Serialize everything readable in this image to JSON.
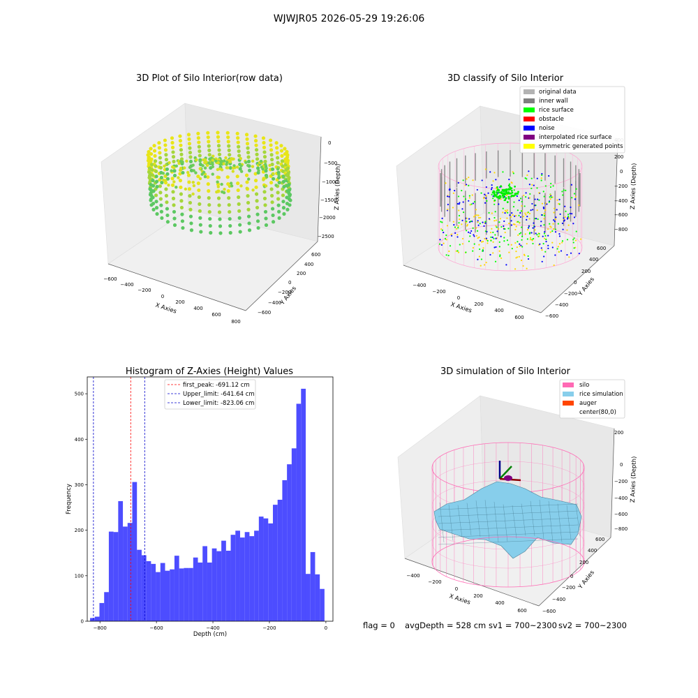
{
  "figure": {
    "suptitle": "WJWJR05 2026-05-29 19:26:06",
    "status": {
      "flag": "flag = 0",
      "avg_depth": "avgDepth = 528 cm",
      "sv1": "sv1 = 700~2300",
      "sv2": "sv2 = 700~2300"
    }
  },
  "colors": {
    "bar": "#4d4dff",
    "first_peak": "#ff0000",
    "limits": "#0000cc",
    "silo": "#ff69b4",
    "rice_simulation": "#87ceeb",
    "auger": "#ff4500"
  },
  "chart_data": [
    {
      "id": "raw",
      "type": "scatter",
      "title": "3D Plot of Silo Interior(row data)",
      "xlabel": "X Axies",
      "ylabel": "Y Axies",
      "zlabel": "Z Axies (Depth)",
      "xticks": [
        "−600",
        "−400",
        "−200",
        "0",
        "200",
        "400",
        "600",
        "800"
      ],
      "yticks": [
        "−600",
        "−400",
        "−200",
        "0",
        "200",
        "400",
        "600"
      ],
      "zticks": [
        "0",
        "−500",
        "−1000",
        "−1500",
        "−2000",
        "−2500"
      ]
    },
    {
      "id": "classify",
      "type": "scatter",
      "title": "3D classify of Silo Interior",
      "xlabel": "X Axies",
      "ylabel": "Y Axies",
      "zlabel": "Z Axies (Depth)",
      "xticks": [
        "−400",
        "−200",
        "0",
        "200",
        "400",
        "600"
      ],
      "yticks": [
        "−600",
        "−400",
        "−200",
        "0",
        "200",
        "400",
        "600"
      ],
      "zticks": [
        "400",
        "200",
        "0",
        "−200",
        "−400",
        "−600",
        "−800"
      ],
      "legend": [
        {
          "label": "original data",
          "color": "#b3b3b3"
        },
        {
          "label": "inner wall",
          "color": "#808080"
        },
        {
          "label": "rice surface",
          "color": "#00ff00"
        },
        {
          "label": "obstacle",
          "color": "#ff0000"
        },
        {
          "label": "noise",
          "color": "#0000ff"
        },
        {
          "label": "interpolated rice surface",
          "color": "#800080"
        },
        {
          "label": "symmetric generated points",
          "color": "#ffff00"
        }
      ]
    },
    {
      "id": "hist",
      "type": "bar",
      "title": "Histogram of Z-Axies (Height) Values",
      "xlabel": "Depth (cm)",
      "ylabel": "Frequency",
      "xlim": [
        -845,
        25
      ],
      "ylim": [
        0,
        537
      ],
      "xticks": [
        {
          "v": -800,
          "label": "−800"
        },
        {
          "v": -600,
          "label": "−600"
        },
        {
          "v": -400,
          "label": "−400"
        },
        {
          "v": -200,
          "label": "−200"
        },
        {
          "v": 0,
          "label": "0"
        }
      ],
      "yticks": [
        {
          "v": 0,
          "label": "0"
        },
        {
          "v": 100,
          "label": "100"
        },
        {
          "v": 200,
          "label": "200"
        },
        {
          "v": 300,
          "label": "300"
        },
        {
          "v": 400,
          "label": "400"
        },
        {
          "v": 500,
          "label": "500"
        }
      ],
      "bin_start": -835,
      "bin_width": 16.6,
      "values": [
        7,
        10,
        40,
        64,
        197,
        196,
        264,
        208,
        216,
        306,
        157,
        145,
        132,
        126,
        108,
        128,
        111,
        114,
        144,
        116,
        117,
        117,
        140,
        129,
        165,
        129,
        160,
        154,
        177,
        155,
        190,
        199,
        184,
        196,
        187,
        199,
        230,
        226,
        215,
        256,
        267,
        310,
        345,
        380,
        478,
        511,
        104,
        152,
        103,
        71
      ],
      "lines": [
        {
          "label": "first_peak: -691.12 cm",
          "x": -691.12,
          "color": "#ff0000"
        },
        {
          "label": "Upper_limit: -641.64 cm",
          "x": -641.64,
          "color": "#0000cc"
        },
        {
          "label": "Lower_limit: -823.06 cm",
          "x": -823.06,
          "color": "#0000cc"
        }
      ]
    },
    {
      "id": "simulation",
      "type": "area",
      "title": "3D simulation of Silo Interior",
      "xlabel": "X Axies",
      "ylabel": "Y Axies",
      "zlabel": "Z Axies (Depth)",
      "xticks": [
        "−400",
        "−200",
        "0",
        "200",
        "400",
        "600"
      ],
      "yticks": [
        "−600",
        "−400",
        "−200",
        "0",
        "200",
        "400",
        "600"
      ],
      "zticks": [
        "200",
        "0",
        "−200",
        "−400",
        "−600",
        "−800"
      ],
      "legend": [
        {
          "label": "silo",
          "color": "#ff69b4"
        },
        {
          "label": "rice simulation",
          "color": "#87ceeb"
        },
        {
          "label": "auger",
          "color": "#ff4500"
        },
        {
          "label": "center(80,0)",
          "color": ""
        }
      ]
    }
  ]
}
